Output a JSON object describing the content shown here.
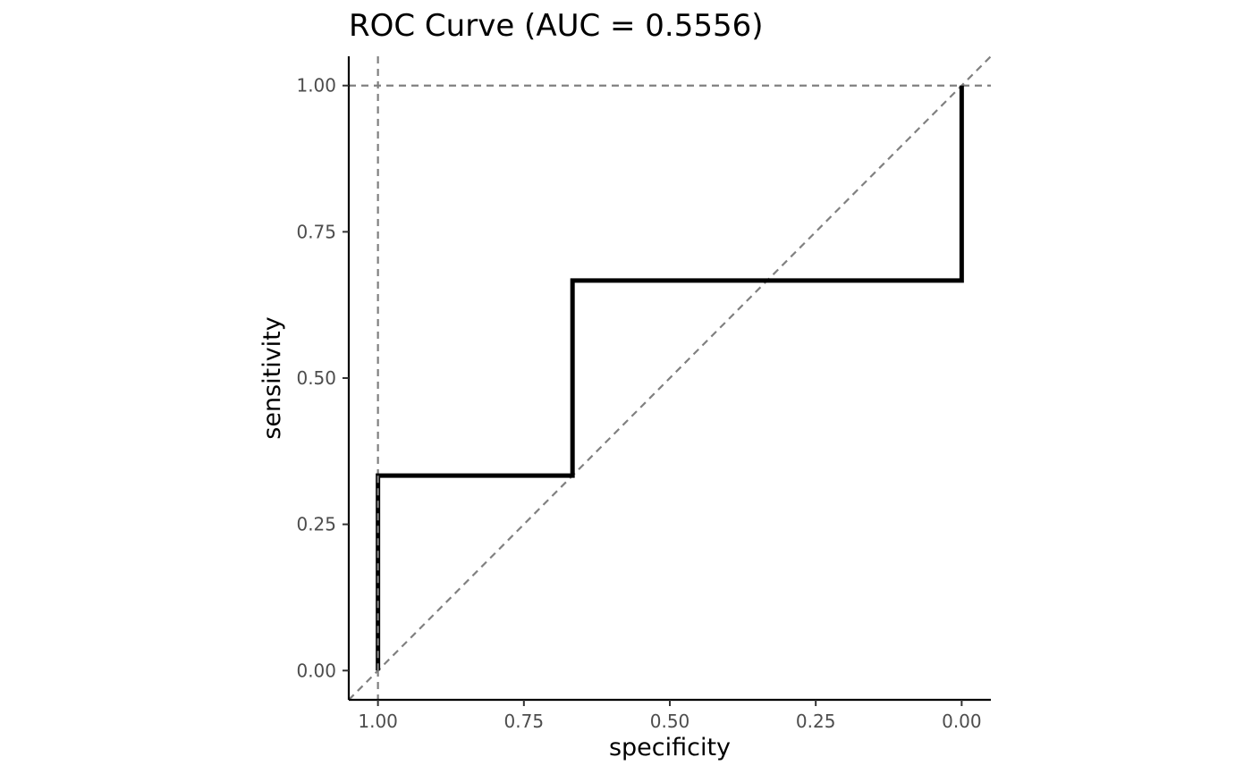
{
  "chart_data": {
    "type": "line",
    "title": "ROC Curve (AUC = 0.5556)",
    "xlabel": "specificity",
    "ylabel": "sensitivity",
    "x_reversed": true,
    "xlim": [
      1.05,
      -0.05
    ],
    "ylim": [
      -0.05,
      1.05
    ],
    "x_ticks": [
      1.0,
      0.75,
      0.5,
      0.25,
      0.0
    ],
    "x_tick_labels": [
      "1.00",
      "0.75",
      "0.50",
      "0.25",
      "0.00"
    ],
    "y_ticks": [
      0.0,
      0.25,
      0.5,
      0.75,
      1.0
    ],
    "y_tick_labels": [
      "0.00",
      "0.25",
      "0.50",
      "0.75",
      "1.00"
    ],
    "grid": false,
    "series": [
      {
        "specificity": [
          1.0,
          1.0,
          0.6667,
          0.6667,
          0.0,
          0.0
        ],
        "sensitivity": [
          0.0,
          0.3333,
          0.3333,
          0.6667,
          0.6667,
          1.0
        ],
        "color": "#000000",
        "style": "solid"
      }
    ],
    "reference_lines": [
      {
        "kind": "diagonal",
        "from": [
          1.0,
          0.0
        ],
        "to": [
          0.0,
          1.0
        ],
        "extends_to_axes": true,
        "color": "#808080",
        "style": "dashed"
      },
      {
        "kind": "horizontal",
        "y": 1.0,
        "color": "#808080",
        "style": "dashed"
      },
      {
        "kind": "vertical",
        "x": 1.0,
        "color": "#808080",
        "style": "dashed"
      }
    ]
  }
}
